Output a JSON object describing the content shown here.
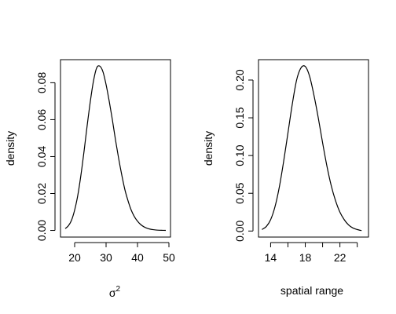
{
  "chart_data": [
    {
      "type": "line",
      "title": "",
      "ylabel": "density",
      "xlabel_base": "σ",
      "xlabel_sup": "2",
      "xlim": [
        15.5,
        50.5
      ],
      "ylim": [
        -0.0036,
        0.0925
      ],
      "x_ticks": [
        20,
        30,
        40,
        50
      ],
      "x_tick_labels": [
        "20",
        "30",
        "40",
        "50"
      ],
      "y_ticks": [
        0.0,
        0.02,
        0.04,
        0.06,
        0.08
      ],
      "y_tick_labels": [
        "0.00",
        "0.02",
        "0.04",
        "0.06",
        "0.08"
      ],
      "series": [
        {
          "x": [
            17,
            18,
            19,
            20,
            21,
            22,
            23,
            24,
            25,
            26,
            27,
            28,
            29,
            30,
            31,
            32,
            33,
            34,
            35,
            36,
            37,
            38,
            39,
            40,
            41,
            42,
            43,
            44,
            45,
            46,
            47,
            48,
            49
          ],
          "values": [
            0.001,
            0.0025,
            0.0055,
            0.011,
            0.019,
            0.03,
            0.043,
            0.057,
            0.07,
            0.081,
            0.088,
            0.089,
            0.086,
            0.079,
            0.07,
            0.06,
            0.049,
            0.039,
            0.03,
            0.022,
            0.016,
            0.011,
            0.0075,
            0.005,
            0.0032,
            0.002,
            0.0012,
            0.0007,
            0.0004,
            0.0002,
            0.0001,
            5e-05,
            0.0
          ]
        }
      ]
    },
    {
      "type": "line",
      "title": "",
      "ylabel": "density",
      "xlabel": "spatial range",
      "xlim": [
        12.6,
        25.3
      ],
      "ylim": [
        -0.008,
        0.227
      ],
      "x_ticks": [
        14,
        18,
        22
      ],
      "x_tick_labels": [
        "14",
        "18",
        "22"
      ],
      "x_minor_ticks": [
        16,
        20,
        24
      ],
      "y_ticks": [
        0.0,
        0.05,
        0.1,
        0.15,
        0.2
      ],
      "y_tick_labels": [
        "0.00",
        "0.05",
        "0.10",
        "0.15",
        "0.20"
      ],
      "series": [
        {
          "x": [
            13.0,
            13.5,
            14.0,
            14.5,
            15.0,
            15.5,
            16.0,
            16.5,
            17.0,
            17.5,
            18.0,
            18.5,
            19.0,
            19.5,
            20.0,
            20.5,
            21.0,
            21.5,
            22.0,
            22.5,
            23.0,
            23.5,
            24.0,
            24.5
          ],
          "values": [
            0.002,
            0.006,
            0.015,
            0.032,
            0.058,
            0.092,
            0.13,
            0.168,
            0.2,
            0.216,
            0.218,
            0.205,
            0.18,
            0.15,
            0.117,
            0.086,
            0.06,
            0.04,
            0.025,
            0.015,
            0.008,
            0.004,
            0.002,
            0.0005
          ]
        }
      ]
    }
  ]
}
